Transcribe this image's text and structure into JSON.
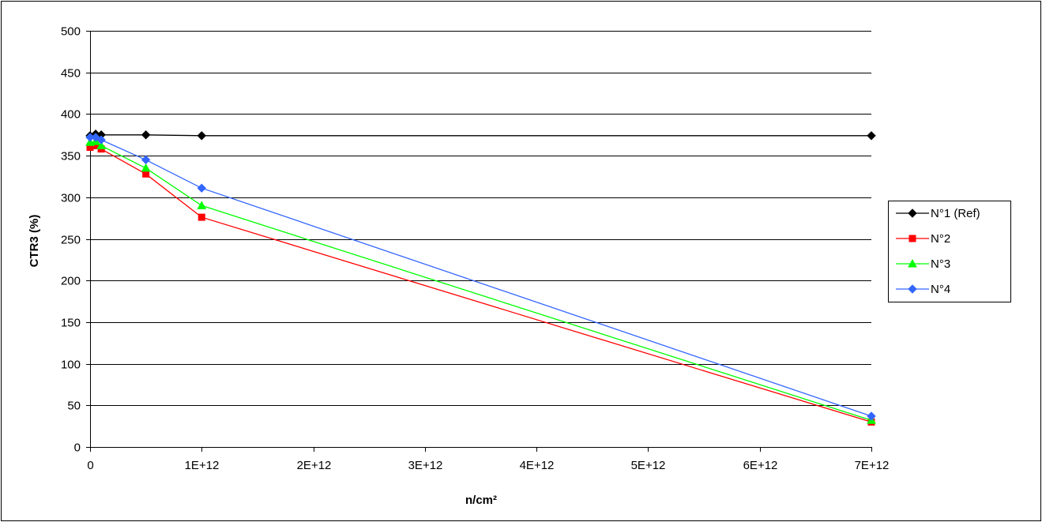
{
  "chart_data": {
    "type": "line",
    "xlabel": "n/cm²",
    "ylabel": "CTR3 (%)",
    "xlim": [
      0,
      7000000000000.0
    ],
    "ylim": [
      0,
      500
    ],
    "x_ticks": [
      0,
      1000000000000.0,
      2000000000000.0,
      3000000000000.0,
      4000000000000.0,
      5000000000000.0,
      6000000000000.0,
      7000000000000.0
    ],
    "x_tick_labels": [
      "0",
      "1E+12",
      "2E+12",
      "3E+12",
      "4E+12",
      "5E+12",
      "6E+12",
      "7E+12"
    ],
    "y_ticks": [
      0,
      50,
      100,
      150,
      200,
      250,
      300,
      350,
      400,
      450,
      500
    ],
    "y_tick_labels": [
      "0",
      "50",
      "100",
      "150",
      "200",
      "250",
      "300",
      "350",
      "400",
      "450",
      "500"
    ],
    "grid": "horizontal",
    "legend_position": "right",
    "series": [
      {
        "name": "N°1 (Ref)",
        "color": "#000000",
        "marker": "diamond",
        "x": [
          0,
          50000000000.0,
          100000000000.0,
          500000000000.0,
          1000000000000.0,
          7000000000000.0
        ],
        "y": [
          374,
          376,
          375,
          375,
          374,
          374
        ]
      },
      {
        "name": "N°2",
        "color": "#ff0000",
        "marker": "square",
        "x": [
          0,
          50000000000.0,
          100000000000.0,
          500000000000.0,
          1000000000000.0,
          7000000000000.0
        ],
        "y": [
          360,
          362,
          358,
          328,
          276,
          30
        ]
      },
      {
        "name": "N°3",
        "color": "#00ff00",
        "marker": "triangle",
        "x": [
          0,
          50000000000.0,
          100000000000.0,
          500000000000.0,
          1000000000000.0,
          7000000000000.0
        ],
        "y": [
          366,
          367,
          362,
          335,
          290,
          32
        ]
      },
      {
        "name": "N°4",
        "color": "#3366ff",
        "marker": "diamond",
        "x": [
          0,
          50000000000.0,
          100000000000.0,
          500000000000.0,
          1000000000000.0,
          7000000000000.0
        ],
        "y": [
          372,
          372,
          369,
          345,
          311,
          37
        ]
      }
    ]
  }
}
